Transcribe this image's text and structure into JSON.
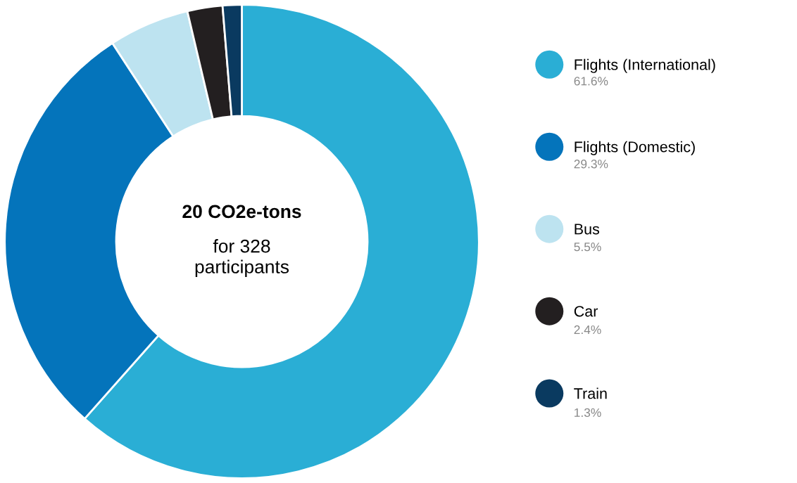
{
  "chart_data": {
    "type": "donut",
    "title": "20 CO2e-tons",
    "subtitle": "for 328\nparticipants",
    "categories": [
      "Flights (International)",
      "Flights (Domestic)",
      "Bus",
      "Car",
      "Train"
    ],
    "values": [
      61.6,
      29.3,
      5.5,
      2.4,
      1.3
    ],
    "value_labels": [
      "61.6%",
      "29.3%",
      "5.5%",
      "2.4%",
      "1.3%"
    ],
    "colors": [
      "#2aaed5",
      "#0474bb",
      "#bde3f0",
      "#231f20",
      "#0a3a60"
    ],
    "legend": "right"
  }
}
